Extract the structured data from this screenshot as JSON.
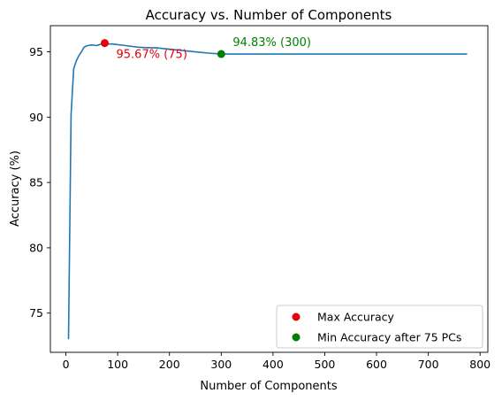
{
  "chart_data": {
    "type": "line",
    "title": "Accuracy vs. Number of Components",
    "xlabel": "Number of Components",
    "ylabel": "Accuracy (%)",
    "xlim": [
      -30,
      815
    ],
    "ylim": [
      72,
      97
    ],
    "xticks": [
      0,
      100,
      200,
      300,
      400,
      500,
      600,
      700,
      800
    ],
    "yticks": [
      75,
      80,
      85,
      90,
      95
    ],
    "grid": false,
    "legend_position": "lower-right",
    "line_color": "#1f77b4",
    "series": [
      {
        "x": [
          5,
          10,
          15,
          20,
          25,
          30,
          35,
          40,
          45,
          50,
          55,
          60,
          65,
          70,
          75,
          80,
          90,
          100,
          110,
          120,
          130,
          140,
          150,
          175,
          200,
          225,
          250,
          275,
          300,
          350,
          400,
          450,
          500,
          550,
          600,
          650,
          700,
          750,
          775
        ],
        "values": [
          73.0,
          90.2,
          93.7,
          94.3,
          94.7,
          95.0,
          95.35,
          95.45,
          95.5,
          95.52,
          95.5,
          95.48,
          95.55,
          95.6,
          95.67,
          95.6,
          95.6,
          95.55,
          95.5,
          95.45,
          95.4,
          95.35,
          95.33,
          95.3,
          95.2,
          95.1,
          95.0,
          94.9,
          94.83,
          94.83,
          94.83,
          94.83,
          94.83,
          94.83,
          94.83,
          94.83,
          94.83,
          94.83,
          94.83
        ]
      }
    ],
    "points": [
      {
        "name": "Max Accuracy",
        "x": 75,
        "y": 95.67,
        "color": "#e8000b",
        "label": "95.67% (75)"
      },
      {
        "name": "Min Accuracy after 75 PCs",
        "x": 300,
        "y": 94.83,
        "color": "#008000",
        "label": "94.83% (300)"
      }
    ]
  }
}
